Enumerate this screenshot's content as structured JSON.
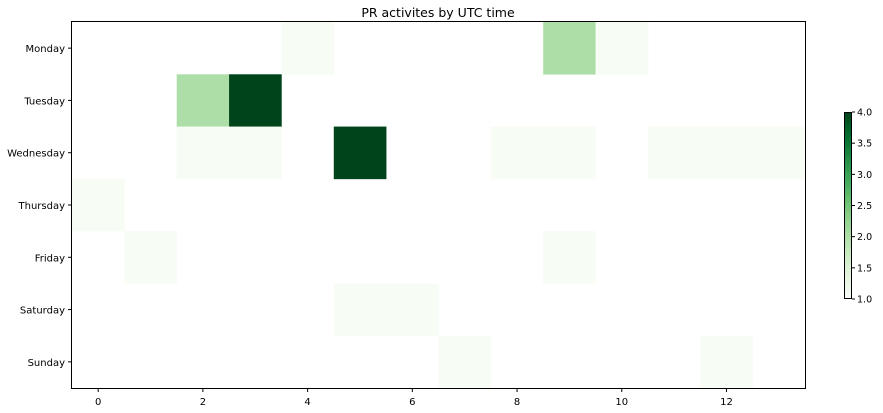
{
  "chart_data": {
    "type": "heatmap",
    "title": "PR activites by UTC time",
    "xlabel": "",
    "ylabel": "",
    "rows": [
      "Monday",
      "Tuesday",
      "Wednesday",
      "Thursday",
      "Friday",
      "Saturday",
      "Sunday"
    ],
    "x_start": 0,
    "x_end": 13,
    "x_ticks": [
      0,
      2,
      4,
      6,
      8,
      10,
      12
    ],
    "cells": [
      {
        "row": "Monday",
        "x": 4,
        "value": 1
      },
      {
        "row": "Monday",
        "x": 9,
        "value": 2
      },
      {
        "row": "Monday",
        "x": 10,
        "value": 1
      },
      {
        "row": "Tuesday",
        "x": 2,
        "value": 2
      },
      {
        "row": "Tuesday",
        "x": 3,
        "value": 4
      },
      {
        "row": "Wednesday",
        "x": 2,
        "value": 1
      },
      {
        "row": "Wednesday",
        "x": 3,
        "value": 1
      },
      {
        "row": "Wednesday",
        "x": 5,
        "value": 4
      },
      {
        "row": "Wednesday",
        "x": 8,
        "value": 1
      },
      {
        "row": "Wednesday",
        "x": 9,
        "value": 1
      },
      {
        "row": "Wednesday",
        "x": 11,
        "value": 1
      },
      {
        "row": "Wednesday",
        "x": 12,
        "value": 1
      },
      {
        "row": "Wednesday",
        "x": 13,
        "value": 1
      },
      {
        "row": "Thursday",
        "x": 0,
        "value": 1
      },
      {
        "row": "Friday",
        "x": 1,
        "value": 1
      },
      {
        "row": "Friday",
        "x": 9,
        "value": 1
      },
      {
        "row": "Saturday",
        "x": 5,
        "value": 1
      },
      {
        "row": "Saturday",
        "x": 6,
        "value": 1
      },
      {
        "row": "Sunday",
        "x": 7,
        "value": 1
      },
      {
        "row": "Sunday",
        "x": 12,
        "value": 1
      }
    ],
    "colorbar": {
      "min": 1.0,
      "max": 4.0,
      "colormap": "Greens",
      "ticks": [
        "1.0",
        "1.5",
        "2.0",
        "2.5",
        "3.0",
        "3.5",
        "4.0"
      ]
    },
    "grid": false
  }
}
